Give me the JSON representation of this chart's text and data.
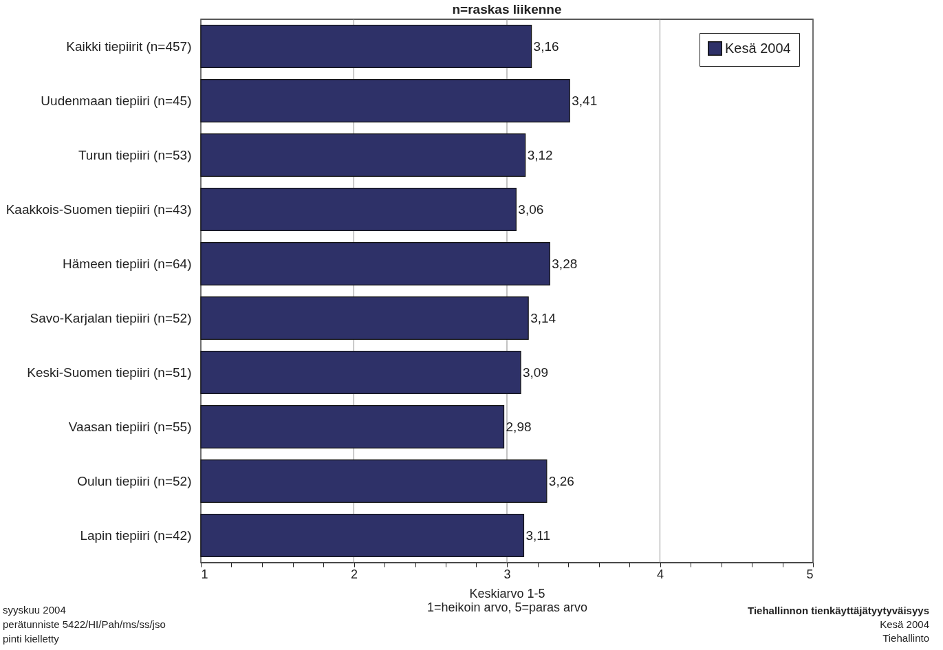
{
  "chart_data": {
    "type": "bar",
    "orientation": "horizontal",
    "title": "n=raskas liikenne",
    "xlabel": "Keskiarvo 1-5\n1=heikoin arvo, 5=paras arvo",
    "categories": [
      "Kaikki tiepiirit (n=457)",
      "Uudenmaan tiepiiri (n=45)",
      "Turun tiepiiri (n=53)",
      "Kaakkois-Suomen tiepiiri (n=43)",
      "Hämeen tiepiiri (n=64)",
      "Savo-Karjalan tiepiiri (n=52)",
      "Keski-Suomen tiepiiri (n=51)",
      "Vaasan tiepiiri (n=55)",
      "Oulun tiepiiri (n=52)",
      "Lapin tiepiiri (n=42)"
    ],
    "series": [
      {
        "name": "Kesä 2004",
        "color": "#2e3168",
        "values": [
          3.16,
          3.41,
          3.12,
          3.06,
          3.28,
          3.14,
          3.09,
          2.98,
          3.26,
          3.11
        ],
        "value_labels": [
          "3,16",
          "3,41",
          "3,12",
          "3,06",
          "3,28",
          "3,14",
          "3,09",
          "2,98",
          "3,26",
          "3,11"
        ]
      }
    ],
    "xlim": [
      1,
      5
    ],
    "xticks": [
      1,
      {
        "value": 1.2,
        "label": null
      },
      {
        "value": 1.4,
        "label": null
      },
      {
        "value": 1.6,
        "label": null
      },
      {
        "value": 1.8,
        "label": null
      },
      2,
      {
        "value": 2.2,
        "label": null
      },
      {
        "value": 2.4,
        "label": null
      },
      {
        "value": 2.6,
        "label": null
      },
      {
        "value": 2.8,
        "label": null
      },
      3,
      {
        "value": 3.2,
        "label": null
      },
      {
        "value": 3.4,
        "label": null
      },
      {
        "value": 3.6,
        "label": null
      },
      {
        "value": 3.8,
        "label": null
      },
      4,
      {
        "value": 4.2,
        "label": null
      },
      {
        "value": 4.4,
        "label": null
      },
      {
        "value": 4.6,
        "label": null
      },
      {
        "value": 4.8,
        "label": null
      },
      5
    ],
    "grid": "x",
    "legend": "top right",
    "annotations": [
      "syyskuu 2004",
      "perätunniste 5422/HI/Pah/ms/ss/jso",
      "pinti kielletty",
      "Tiehallinnon tienkäyttäjätyytyväisyys",
      "Kesä 2004",
      "Tiehallinto"
    ]
  }
}
